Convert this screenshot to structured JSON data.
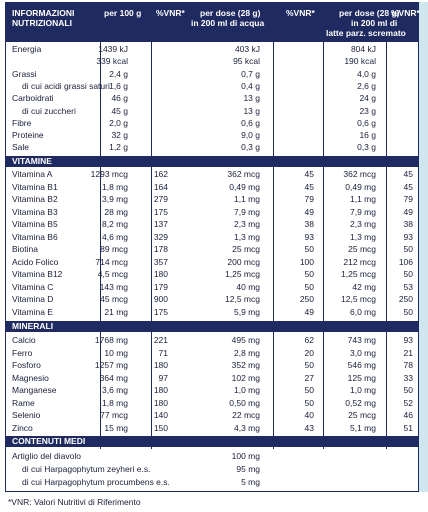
{
  "header": {
    "col_name_line1": "INFORMAZIONI",
    "col_name_line2": "NUTRIZIONALI",
    "col_per100": "per 100 g",
    "col_vnr1": "%VNR*",
    "col_dose_line1": "per dose (28 g)",
    "col_dose_line2": "in 200 ml di acqua",
    "col_vnr2": "%VNR*",
    "col_milk_line1": "per dose (28 g)",
    "col_milk_line2": "in 200 ml di",
    "col_milk_line3": "latte parz. scremato",
    "col_vnr3": "%VNR*"
  },
  "nutrients": [
    {
      "name": "Energia",
      "per100": "1439 kJ",
      "vnr1": "",
      "dose": "403 kJ",
      "vnr2": "",
      "milk": "804 kJ",
      "vnr3": ""
    },
    {
      "name": "",
      "per100": "339 kcal",
      "vnr1": "",
      "dose": "95 kcal",
      "vnr2": "",
      "milk": "190 kcal",
      "vnr3": ""
    },
    {
      "name": "Grassi",
      "per100": "2,4 g",
      "vnr1": "",
      "dose": "0,7 g",
      "vnr2": "",
      "milk": "4,0 g",
      "vnr3": ""
    },
    {
      "name": "di cui acidi grassi saturi",
      "per100": "1,6 g",
      "vnr1": "",
      "dose": "0,4 g",
      "vnr2": "",
      "milk": "2,6 g",
      "vnr3": ""
    },
    {
      "name": "Carboidrati",
      "per100": "46 g",
      "vnr1": "",
      "dose": "13 g",
      "vnr2": "",
      "milk": "24 g",
      "vnr3": ""
    },
    {
      "name": "di cui zuccheri",
      "per100": "45 g",
      "vnr1": "",
      "dose": "13 g",
      "vnr2": "",
      "milk": "23 g",
      "vnr3": ""
    },
    {
      "name": "Fibre",
      "per100": "2,0 g",
      "vnr1": "",
      "dose": "0,6 g",
      "vnr2": "",
      "milk": "0,6 g",
      "vnr3": ""
    },
    {
      "name": "Proteine",
      "per100": "32 g",
      "vnr1": "",
      "dose": "9,0 g",
      "vnr2": "",
      "milk": "16 g",
      "vnr3": ""
    },
    {
      "name": "Sale",
      "per100": "1,2 g",
      "vnr1": "",
      "dose": "0,3 g",
      "vnr2": "",
      "milk": "0,3 g",
      "vnr3": ""
    }
  ],
  "section_vitamins": "VITAMINE",
  "vitamins": [
    {
      "name": "Vitamina A",
      "per100": "1293 mcg",
      "vnr1": "162",
      "dose": "362 mcg",
      "vnr2": "45",
      "milk": "362 mcg",
      "vnr3": "45"
    },
    {
      "name": "Vitamina B1",
      "per100": "1,8 mg",
      "vnr1": "164",
      "dose": "0,49 mg",
      "vnr2": "45",
      "milk": "0,49 mg",
      "vnr3": "45"
    },
    {
      "name": "Vitamina B2",
      "per100": "3,9 mg",
      "vnr1": "279",
      "dose": "1,1 mg",
      "vnr2": "79",
      "milk": "1,1 mg",
      "vnr3": "79"
    },
    {
      "name": "Vitamina B3",
      "per100": "28 mg",
      "vnr1": "175",
      "dose": "7,9 mg",
      "vnr2": "49",
      "milk": "7,9 mg",
      "vnr3": "49"
    },
    {
      "name": "Vitamina B5",
      "per100": "8,2 mg",
      "vnr1": "137",
      "dose": "2,3 mg",
      "vnr2": "38",
      "milk": "2,3 mg",
      "vnr3": "38"
    },
    {
      "name": "Vitamina B6",
      "per100": "4,6 mg",
      "vnr1": "329",
      "dose": "1,3 mg",
      "vnr2": "93",
      "milk": "1,3 mg",
      "vnr3": "93"
    },
    {
      "name": "Biotina",
      "per100": "89 mcg",
      "vnr1": "178",
      "dose": "25 mcg",
      "vnr2": "50",
      "milk": "25 mcg",
      "vnr3": "50"
    },
    {
      "name": "Acido Folico",
      "per100": "714 mcg",
      "vnr1": "357",
      "dose": "200 mcg",
      "vnr2": "100",
      "milk": "212 mcg",
      "vnr3": "106"
    },
    {
      "name": "Vitamina B12",
      "per100": "4,5 mcg",
      "vnr1": "180",
      "dose": "1,25 mcg",
      "vnr2": "50",
      "milk": "1,25 mcg",
      "vnr3": "50"
    },
    {
      "name": "Vitamina C",
      "per100": "143 mg",
      "vnr1": "179",
      "dose": "40 mg",
      "vnr2": "50",
      "milk": "42 mg",
      "vnr3": "53"
    },
    {
      "name": "Vitamina D",
      "per100": "45 mcg",
      "vnr1": "900",
      "dose": "12,5 mcg",
      "vnr2": "250",
      "milk": "12,5 mcg",
      "vnr3": "250"
    },
    {
      "name": "Vitamina E",
      "per100": "21 mg",
      "vnr1": "175",
      "dose": "5,9 mg",
      "vnr2": "49",
      "milk": "6,0 mg",
      "vnr3": "50"
    }
  ],
  "section_minerals": "MINERALI",
  "minerals": [
    {
      "name": "Calcio",
      "per100": "1768 mg",
      "vnr1": "221",
      "dose": "495 mg",
      "vnr2": "62",
      "milk": "743 mg",
      "vnr3": "93"
    },
    {
      "name": "Ferro",
      "per100": "10 mg",
      "vnr1": "71",
      "dose": "2,8 mg",
      "vnr2": "20",
      "milk": "3,0 mg",
      "vnr3": "21"
    },
    {
      "name": "Fosforo",
      "per100": "1257 mg",
      "vnr1": "180",
      "dose": "352 mg",
      "vnr2": "50",
      "milk": "546 mg",
      "vnr3": "78"
    },
    {
      "name": "Magnesio",
      "per100": "364 mg",
      "vnr1": "97",
      "dose": "102 mg",
      "vnr2": "27",
      "milk": "125 mg",
      "vnr3": "33"
    },
    {
      "name": "Manganese",
      "per100": "3,6 mg",
      "vnr1": "180",
      "dose": "1,0 mg",
      "vnr2": "50",
      "milk": "1,0 mg",
      "vnr3": "50"
    },
    {
      "name": "Rame",
      "per100": "1,8 mg",
      "vnr1": "180",
      "dose": "0,50 mg",
      "vnr2": "50",
      "milk": "0,52 mg",
      "vnr3": "52"
    },
    {
      "name": "Selenio",
      "per100": "77 mcg",
      "vnr1": "140",
      "dose": "22 mcg",
      "vnr2": "40",
      "milk": "25 mcg",
      "vnr3": "46"
    },
    {
      "name": "Zinco",
      "per100": "15 mg",
      "vnr1": "150",
      "dose": "4,3 mg",
      "vnr2": "43",
      "milk": "5,1 mg",
      "vnr3": "51"
    }
  ],
  "section_other": "CONTENUTI MEDI",
  "other": [
    {
      "name": "Artiglio del diavolo",
      "dose": "100 mg"
    },
    {
      "name": "di cui Harpagophytum zeyheri e.s.",
      "dose": "95 mg"
    },
    {
      "name": "di cui Harpagophytum procumbens e.s.",
      "dose": "5 mg"
    }
  ],
  "footnote": "*VNR: Valori Nutritivi di Riferimento",
  "colors": {
    "navy": "#1f2a60",
    "side_bar": "#cfe6ee"
  }
}
